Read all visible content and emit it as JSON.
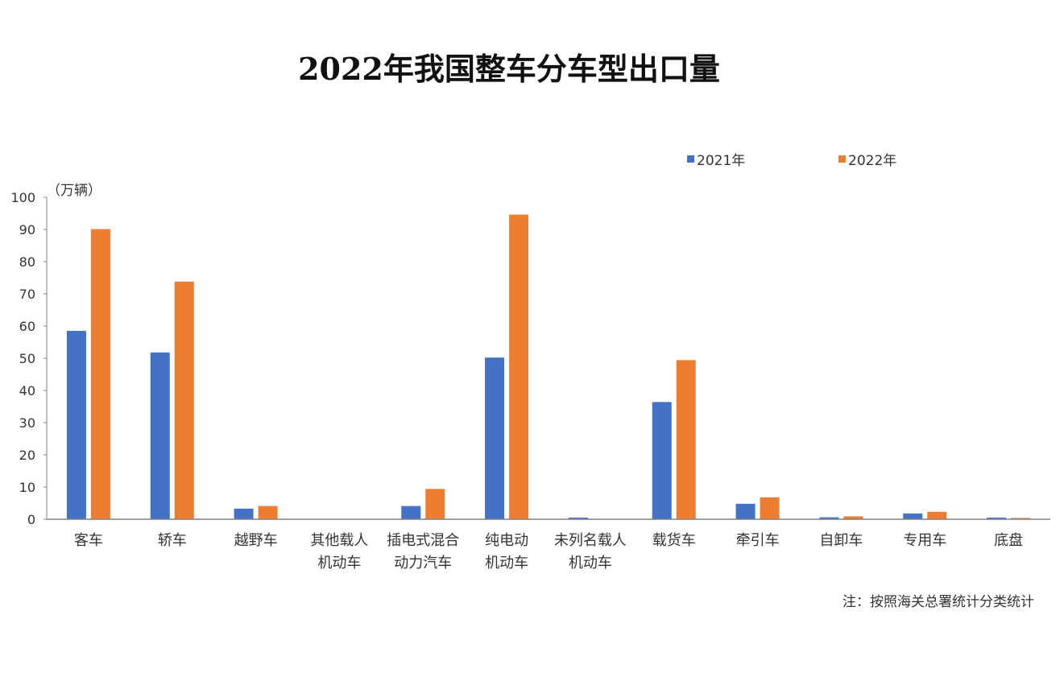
{
  "title": "2022年我国整车分车型出口量",
  "unit_label": "（万辆）",
  "note": "注：按照海关总署统计分类统计",
  "colors": {
    "series_2021": "#4472C4",
    "series_2022": "#ED7D31",
    "axis": "#808080"
  },
  "chart_data": {
    "type": "bar",
    "title": "2022年我国整车分车型出口量",
    "ylabel": "（万辆）",
    "ylim": [
      0,
      100
    ],
    "yticks": [
      0,
      10,
      20,
      30,
      40,
      50,
      60,
      70,
      80,
      90,
      100
    ],
    "grid": false,
    "legend_position": "top-right",
    "categories": [
      "客车",
      "轿车",
      "越野车",
      "其他载人机动车",
      "插电式混合动力汽车",
      "纯电动机动车",
      "未列名载人机动车",
      "载货车",
      "牵引车",
      "自卸车",
      "专用车",
      "底盘"
    ],
    "category_lines": [
      [
        "客车"
      ],
      [
        "轿车"
      ],
      [
        "越野车"
      ],
      [
        "其他载人",
        "机动车"
      ],
      [
        "插电式混合",
        "动力汽车"
      ],
      [
        "纯电动",
        "机动车"
      ],
      [
        "未列名载人",
        "机动车"
      ],
      [
        "载货车"
      ],
      [
        "牵引车"
      ],
      [
        "自卸车"
      ],
      [
        "专用车"
      ],
      [
        "底盘"
      ]
    ],
    "series": [
      {
        "name": "2021年",
        "values": [
          58.5,
          51.8,
          3.3,
          0,
          4.1,
          50.2,
          0.5,
          36.4,
          4.8,
          0.6,
          1.8,
          0.5
        ]
      },
      {
        "name": "2022年",
        "values": [
          90.1,
          73.8,
          4.1,
          0,
          9.4,
          94.6,
          0.1,
          49.4,
          6.8,
          0.9,
          2.3,
          0.4
        ]
      }
    ]
  }
}
